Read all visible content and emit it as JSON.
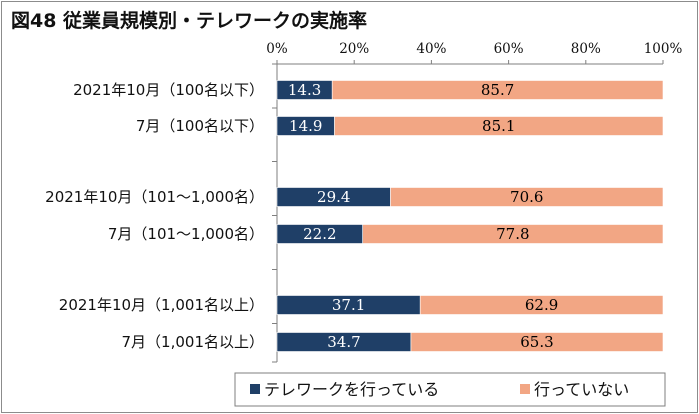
{
  "chart_data": {
    "type": "bar",
    "stacked": true,
    "orientation": "horizontal",
    "title": "図48 従業員規模別・テレワークの実施率",
    "categories": [
      "2021年10月（100名以下）",
      "7月（100名以下）",
      "2021年10月（101～1,000名）",
      "7月（101～1,000名）",
      "2021年10月（1,001名以上）",
      "7月（1,001名以上）"
    ],
    "groups": [
      [
        0,
        1
      ],
      [
        2,
        3
      ],
      [
        4,
        5
      ]
    ],
    "series": [
      {
        "name": "テレワークを行っている",
        "color": "#1f3f67",
        "label_color": "#ffffff",
        "values": [
          14.3,
          14.9,
          29.4,
          22.2,
          37.1,
          34.7
        ]
      },
      {
        "name": "行っていない",
        "color": "#f2a684",
        "label_color": "#000000",
        "values": [
          85.7,
          85.1,
          70.6,
          77.8,
          62.9,
          65.3
        ]
      }
    ],
    "xlim": [
      0,
      100
    ],
    "xticks": [
      "0%",
      "20%",
      "40%",
      "60%",
      "80%",
      "100%"
    ],
    "xaxis_position": "top",
    "grid": false,
    "legend_position": "bottom"
  }
}
